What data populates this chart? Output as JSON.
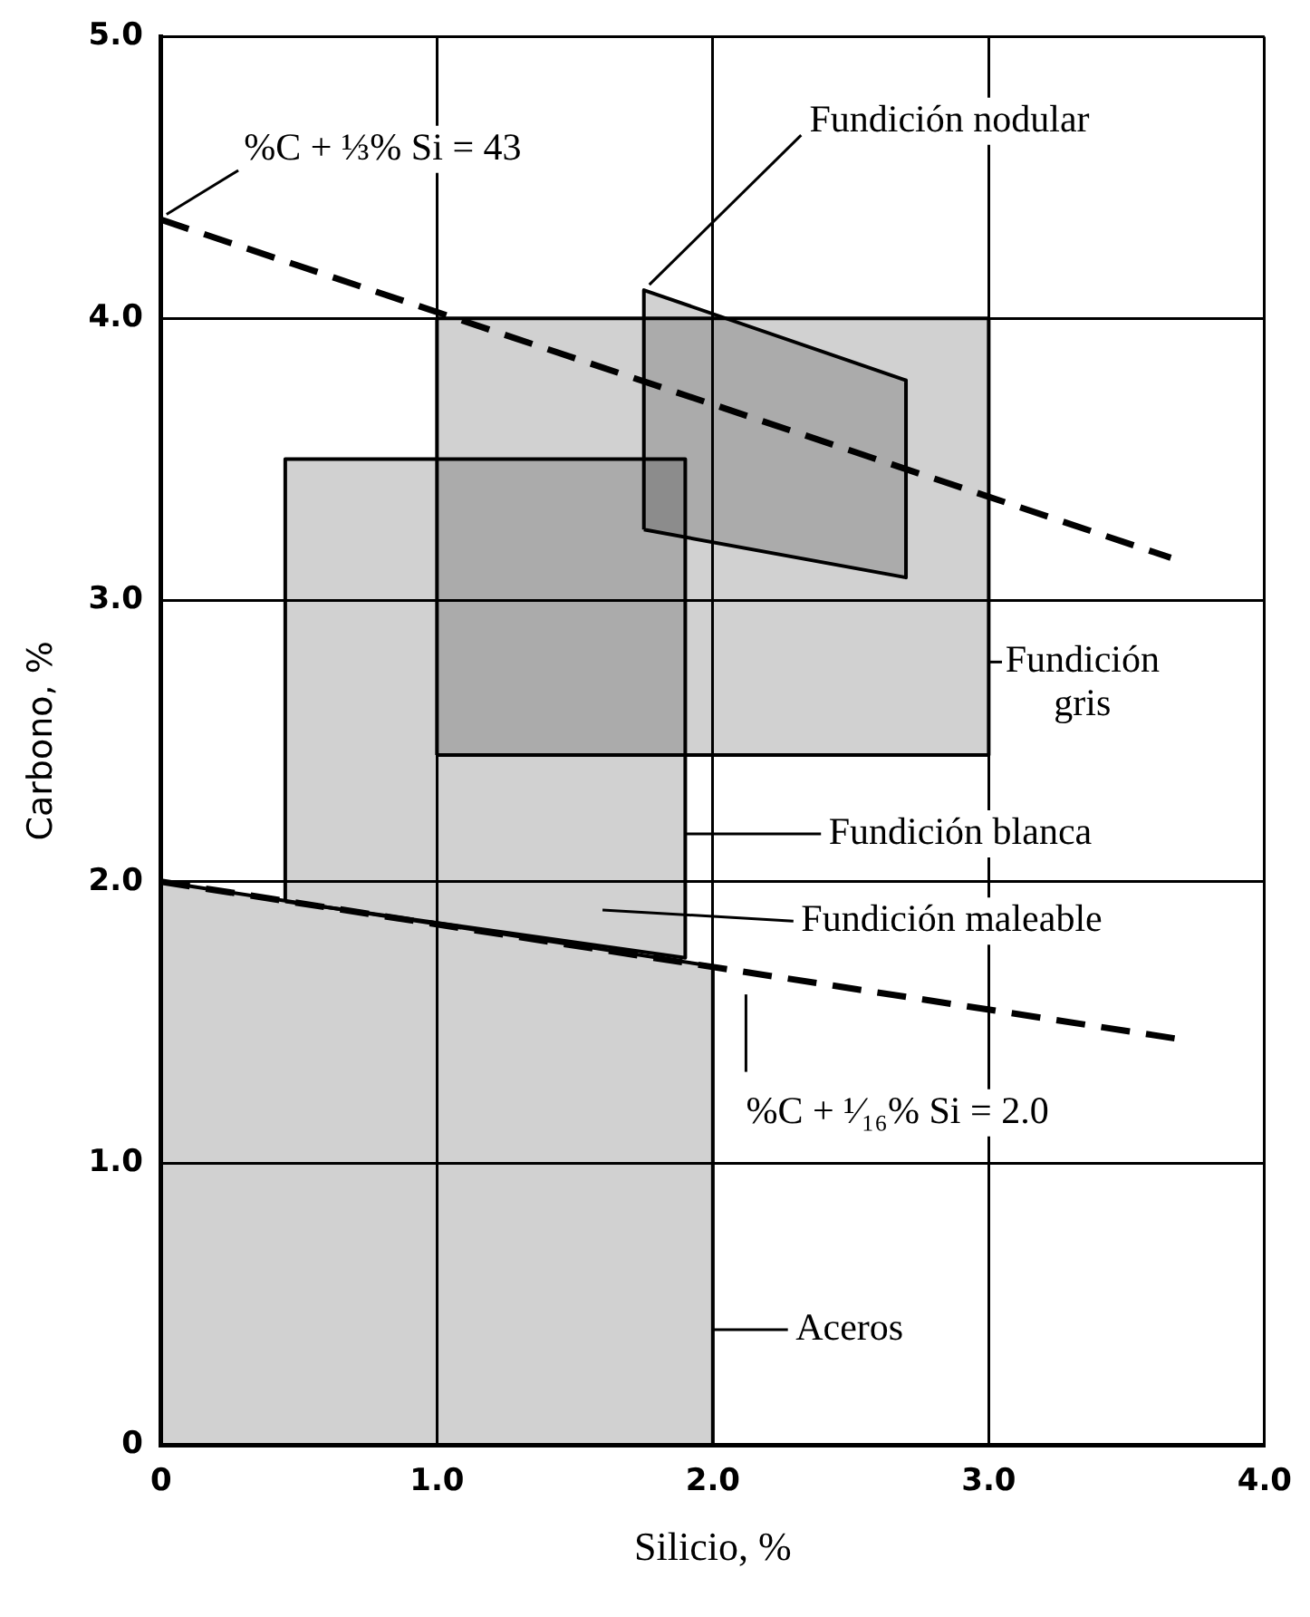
{
  "chart_data": {
    "type": "area",
    "xlabel": "Silicio, %",
    "ylabel": "Carbono, %",
    "xlim": [
      0,
      4.0
    ],
    "ylim": [
      0,
      5.0
    ],
    "xticks": [
      0,
      {
        "value": 1,
        "label": "1.0"
      },
      {
        "value": 2,
        "label": "2.0"
      },
      {
        "value": 3,
        "label": "3.0"
      },
      {
        "value": 4,
        "label": "4.0"
      }
    ],
    "yticks": [
      0,
      {
        "value": 1,
        "label": "1.0"
      },
      {
        "value": 2,
        "label": "2.0"
      },
      {
        "value": 3,
        "label": "3.0"
      },
      {
        "value": 4,
        "label": "4.0"
      },
      {
        "value": 5,
        "label": "5.0"
      }
    ],
    "grid": true,
    "legend": false,
    "marker": "none",
    "series": [
      {
        "color": "#000000",
        "x": [
          0,
          0,
          2.0,
          2.0,
          0
        ],
        "values": [
          0,
          2.0,
          1.7,
          0,
          0
        ]
      },
      {
        "color": "#000000",
        "x": [
          0.45,
          0.45,
          1.9,
          1.9,
          0.45
        ],
        "values": [
          1.93,
          3.5,
          3.5,
          1.73,
          1.93
        ]
      },
      {
        "color": "#000000",
        "x": [
          1.0,
          1.0,
          3.0,
          3.0,
          1.0
        ],
        "values": [
          2.45,
          4.0,
          4.0,
          2.45,
          2.45
        ]
      },
      {
        "color": "#000000",
        "x": [
          1.75,
          1.75,
          2.7,
          2.7,
          1.75
        ],
        "values": [
          3.25,
          4.1,
          3.78,
          3.08,
          3.25
        ]
      },
      {
        "type": "line",
        "color": "#000000",
        "line_style": "dashed",
        "x": [
          0,
          3.66
        ],
        "values": [
          4.35,
          3.15
        ]
      },
      {
        "type": "line",
        "color": "#000000",
        "line_style": "dashed",
        "x": [
          0,
          3.7
        ],
        "values": [
          2.0,
          1.44
        ]
      }
    ],
    "annotations": [
      {
        "text": "%C + ⅓% Si = 43",
        "x": 0,
        "y": 4.35
      },
      {
        "text": "Fundición nodular",
        "x": 1.75,
        "y": 4.1
      },
      "Fundición\ngris",
      "Fundición blanca",
      "Fundición maleable",
      "%C + ¹⁄₁₆% Si = 2.0",
      "Aceros"
    ]
  }
}
